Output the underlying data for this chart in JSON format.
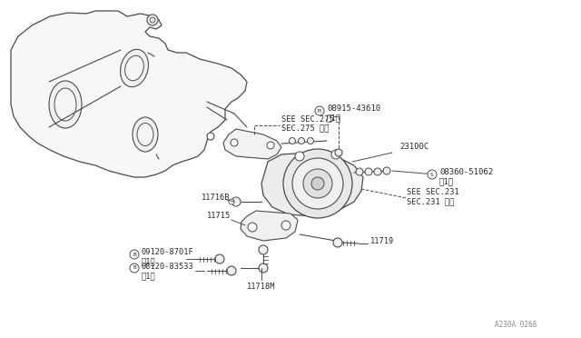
{
  "bg_color": "#ffffff",
  "line_color": "#4a4a4a",
  "text_color": "#2a2a2a",
  "fig_width": 6.4,
  "fig_height": 3.72,
  "dpi": 100,
  "watermark": "A230A 0268",
  "labels": {
    "part1": "08915-43610",
    "part1_qty": "（1）",
    "part1_prefix": "M",
    "part2": "23100C",
    "part3": "08360-51062",
    "part3_qty": "（1）",
    "part3_prefix": "S",
    "part4a": "SEE SEC.275",
    "part4b": "SEC.275 参照",
    "part5a": "SEE SEC.231",
    "part5b": "SEC.231 参照",
    "part6": "11716B",
    "part7": "11715",
    "part8": "09120-8701F",
    "part8_qty": "（1）",
    "part8_prefix": "B",
    "part9": "08120-83533",
    "part9_qty": "（1）",
    "part9_prefix": "B",
    "part10": "11718M",
    "part11": "11719"
  }
}
